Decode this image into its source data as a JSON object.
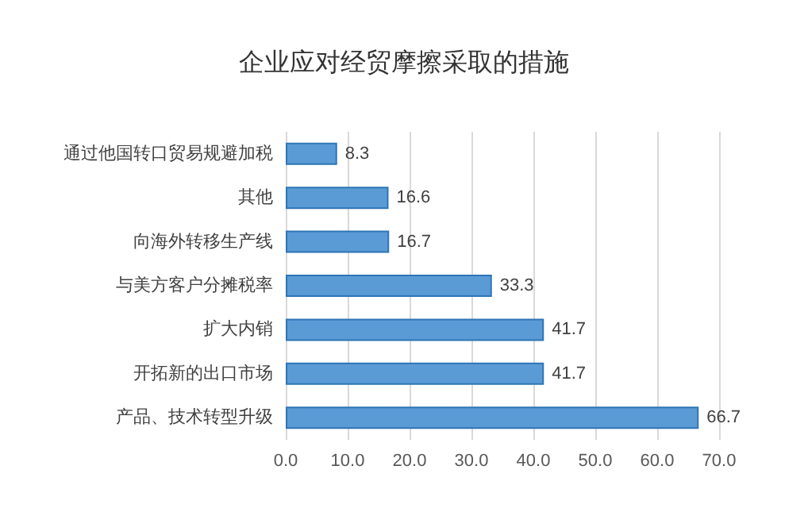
{
  "chart_data": {
    "type": "bar",
    "orientation": "horizontal",
    "title": "企业应对经贸摩擦采取的措施",
    "categories": [
      "通过他国转口贸易规避加税",
      "其他",
      "向海外转移生产线",
      "与美方客户分摊税率",
      "扩大内销",
      "开拓新的出口市场",
      "产品、技术转型升级"
    ],
    "values": [
      8.3,
      16.6,
      16.7,
      33.3,
      41.7,
      41.7,
      66.7
    ],
    "color": "#5b9bd5",
    "xlim": [
      0,
      70
    ],
    "xticks": [
      {
        "value": 0,
        "label": "0.0"
      },
      {
        "value": 10,
        "label": "10.0"
      },
      {
        "value": 20,
        "label": "20.0"
      },
      {
        "value": 30,
        "label": "30.0"
      },
      {
        "value": 40,
        "label": "40.0"
      },
      {
        "value": 50,
        "label": "50.0"
      },
      {
        "value": 60,
        "label": "60.0"
      },
      {
        "value": 70,
        "label": "70.0"
      }
    ],
    "grid": "x",
    "data_labels": true
  }
}
